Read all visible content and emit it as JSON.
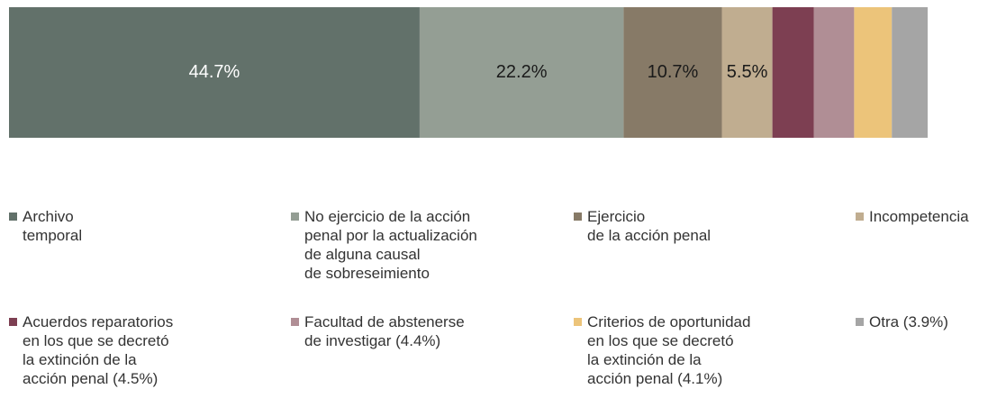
{
  "chart_data": {
    "type": "bar",
    "orientation": "horizontal",
    "stacked": true,
    "xlim": [
      0,
      100
    ],
    "series": [
      {
        "name": "Archivo\ntemporal",
        "color": "#62716a",
        "values": [
          44.7
        ],
        "value_labels": [
          "44.7%"
        ],
        "label_color": "#ffffff"
      },
      {
        "name": "No ejercicio de la acción\npenal por la actualización\nde alguna causal\nde sobreseimiento",
        "color": "#949e94",
        "values": [
          22.2
        ],
        "value_labels": [
          "22.2%"
        ],
        "label_color": "#1a1a1a"
      },
      {
        "name": "Ejercicio\nde la acción penal",
        "color": "#877a67",
        "values": [
          10.7
        ],
        "value_labels": [
          "10.7%"
        ],
        "label_color": "#1a1a1a"
      },
      {
        "name": "Incompetencia",
        "color": "#c0ad90",
        "values": [
          5.5
        ],
        "value_labels": [
          "5.5%"
        ],
        "label_color": "#1a1a1a"
      },
      {
        "name": "Acuerdos reparatorios\nen los que se decretó\nla extinción de la\nacción penal (4.5%)",
        "color": "#7d3f52",
        "values": [
          4.5
        ]
      },
      {
        "name": "Facultad de abstenerse\nde investigar (4.4%)",
        "color": "#b08e95",
        "values": [
          4.4
        ]
      },
      {
        "name": "Criterios de oportunidad\nen los que se decretó\nla extinción de la\nacción penal (4.1%)",
        "color": "#ecc47a",
        "values": [
          4.1
        ]
      },
      {
        "name": "Otra (3.9%)",
        "color": "#a5a5a5",
        "values": [
          3.9
        ]
      }
    ]
  }
}
